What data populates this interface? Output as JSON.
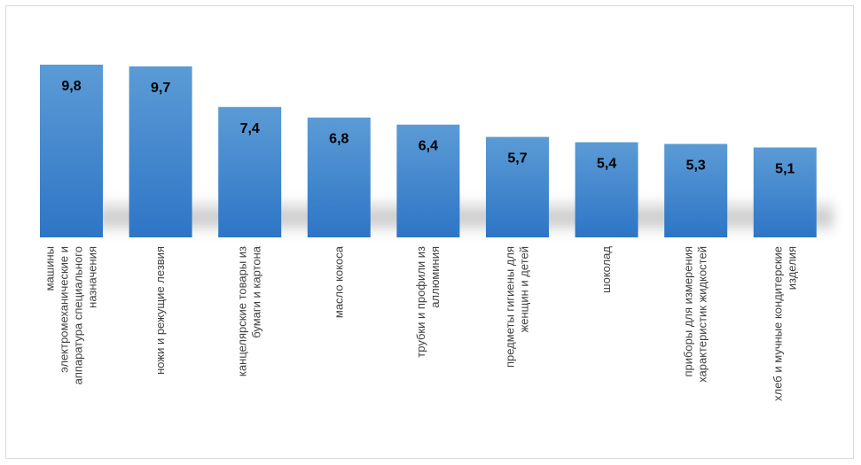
{
  "chart_data": {
    "type": "bar",
    "title": "",
    "xlabel": "",
    "ylabel": "",
    "ylim": [
      0,
      9.8
    ],
    "grid": false,
    "legend": "none",
    "colors": {
      "bar_top": "#5b9bd5",
      "bar_bottom": "#2e75c6",
      "label": "#000000",
      "category": "#404040"
    },
    "categories": [
      [
        "машины",
        "электромеханические и",
        "аппаратура специального",
        "назначения"
      ],
      [
        "ножи и режущие лезвия"
      ],
      [
        "канцелярские товары из",
        "бумаги и картона"
      ],
      [
        "масло кокоса"
      ],
      [
        "трубки и профили из",
        "аллюминия"
      ],
      [
        "предметы гигиены для",
        "женщин и детей"
      ],
      [
        "шоколад"
      ],
      [
        "приборы для измерения",
        "характеристик жидкостей"
      ],
      [
        "хлеб и мучные кондитерские",
        "изделия"
      ]
    ],
    "values": [
      9.8,
      9.7,
      7.4,
      6.8,
      6.4,
      5.7,
      5.4,
      5.3,
      5.1
    ],
    "value_labels": [
      "9,8",
      "9,7",
      "7,4",
      "6,8",
      "6,4",
      "5,7",
      "5,4",
      "5,3",
      "5,1"
    ]
  }
}
